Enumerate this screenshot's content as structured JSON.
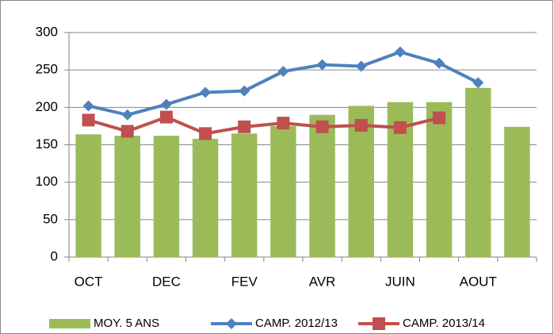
{
  "chart_data": {
    "type": "bar_line",
    "categories": [
      "OCT",
      null,
      "DEC",
      null,
      "FEV",
      null,
      "AVR",
      null,
      "JUIN",
      null,
      "AOUT",
      null
    ],
    "series": [
      {
        "name": "MOY. 5 ANS",
        "type": "bar",
        "color": "#9bbb59",
        "values": [
          164,
          162,
          162,
          158,
          165,
          175,
          190,
          202,
          207,
          207,
          226,
          174
        ]
      },
      {
        "name": "CAMP. 2012/13",
        "type": "line",
        "marker": "diamond",
        "color": "#4f81bd",
        "values": [
          202,
          190,
          204,
          220,
          222,
          248,
          257,
          255,
          274,
          259,
          233,
          null
        ]
      },
      {
        "name": "CAMP. 2013/14",
        "type": "line",
        "marker": "square",
        "color": "#c0504d",
        "values": [
          183,
          168,
          187,
          165,
          174,
          179,
          174,
          176,
          173,
          186,
          null,
          null
        ]
      }
    ],
    "ylim": [
      0,
      300
    ],
    "yticks": [
      0,
      50,
      100,
      150,
      200,
      250,
      300
    ],
    "grid": true,
    "legend": "bottom"
  }
}
